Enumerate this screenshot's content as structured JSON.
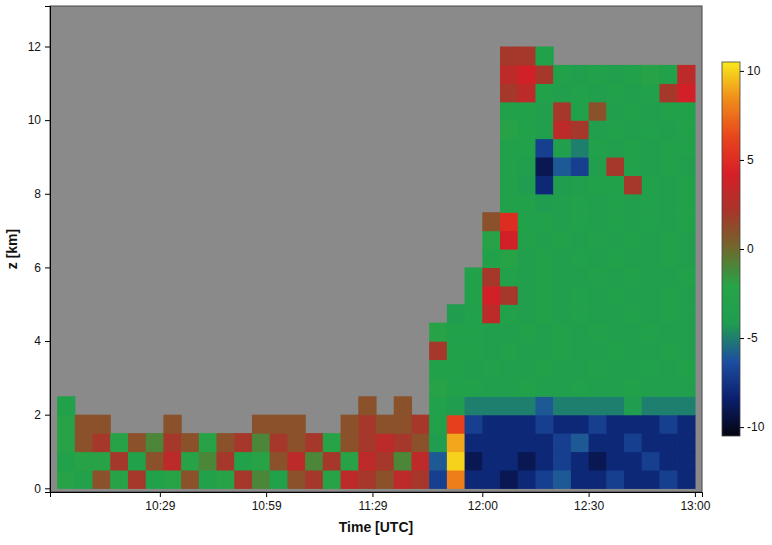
{
  "chart_data": {
    "type": "heatmap",
    "xlabel": "Time [UTC]",
    "ylabel": "z [km]",
    "xlim": [
      598,
      782
    ],
    "xticks": [
      {
        "value": 629,
        "label": "10:29"
      },
      {
        "value": 659,
        "label": "10:59"
      },
      {
        "value": 689,
        "label": "11:29"
      },
      {
        "value": 720,
        "label": "12:00"
      },
      {
        "value": 750,
        "label": "12:30"
      },
      {
        "value": 780,
        "label": "13:00"
      }
    ],
    "ylim": [
      -0.1,
      13.1
    ],
    "yticks": [
      0,
      2,
      4,
      6,
      8,
      10,
      12
    ],
    "x_bins": [
      600,
      605,
      610,
      615,
      620,
      625,
      630,
      635,
      640,
      645,
      650,
      655,
      660,
      665,
      670,
      675,
      680,
      685,
      690,
      695,
      700,
      705,
      710,
      715,
      720,
      725,
      730,
      735,
      740,
      745,
      750,
      755,
      760,
      765,
      770,
      775,
      780
    ],
    "y_bins": [
      0,
      0.5,
      1,
      1.5,
      2,
      2.5,
      3,
      3.5,
      4,
      4.5,
      5,
      5.5,
      6,
      6.5,
      7,
      7.5,
      8,
      8.5,
      9,
      9.5,
      10,
      10.5,
      11,
      11.5,
      12
    ],
    "values": [
      [
        -2,
        -3,
        1,
        -2,
        2,
        -3,
        -2,
        1,
        -3,
        -2,
        2,
        -1,
        -3,
        1,
        2,
        -2,
        3,
        2,
        1,
        3,
        2,
        -7,
        8,
        -8,
        -8,
        -9,
        -8,
        -7,
        -6,
        -8,
        -8,
        -7,
        -8,
        -8,
        -7,
        -8
      ],
      [
        -3,
        -2,
        -2,
        2,
        -3,
        1,
        3,
        -2,
        -1,
        2,
        -3,
        -2,
        1,
        3,
        -1,
        2,
        -2,
        3,
        2,
        -1,
        3,
        -6,
        10,
        -9,
        -8,
        -8,
        -9,
        -8,
        -7,
        -8,
        -9,
        -8,
        -8,
        -7,
        -8,
        -8
      ],
      [
        -2,
        1,
        2,
        -2,
        1,
        -1,
        2,
        1,
        -2,
        1,
        2,
        -1,
        2,
        1,
        2,
        -2,
        1,
        2,
        3,
        2,
        1,
        -4,
        9,
        -8,
        -8,
        -8,
        -8,
        -8,
        -7,
        -6,
        -8,
        -8,
        -7,
        -8,
        -8,
        -8
      ],
      [
        -2,
        1,
        1,
        null,
        null,
        null,
        1,
        null,
        null,
        null,
        null,
        1,
        1,
        1,
        null,
        null,
        1,
        2,
        1,
        1,
        2,
        -3,
        6,
        -7,
        -8,
        -8,
        -8,
        -7,
        -8,
        -8,
        -7,
        -8,
        -8,
        -8,
        -7,
        -8
      ],
      [
        -3,
        null,
        null,
        null,
        null,
        null,
        null,
        null,
        null,
        null,
        null,
        null,
        null,
        null,
        null,
        null,
        null,
        1,
        null,
        1,
        null,
        -3,
        -4,
        -5,
        -5,
        -5,
        -5,
        -6,
        -5,
        -5,
        -5,
        -5,
        -4,
        -5,
        -5,
        -5
      ],
      [
        null,
        null,
        null,
        null,
        null,
        null,
        null,
        null,
        null,
        null,
        null,
        null,
        null,
        null,
        null,
        null,
        null,
        null,
        null,
        null,
        null,
        -2,
        -3,
        -3,
        -3.5,
        -3.5,
        -3,
        -3.5,
        -3.5,
        -3,
        -3.5,
        -3.5,
        -3,
        -3.5,
        -3.5,
        -3.5
      ],
      [
        null,
        null,
        null,
        null,
        null,
        null,
        null,
        null,
        null,
        null,
        null,
        null,
        null,
        null,
        null,
        null,
        null,
        null,
        null,
        null,
        null,
        -3,
        -3,
        -3.5,
        -3,
        -3.5,
        -3.5,
        -3,
        -3.5,
        -3.5,
        -3,
        -3.5,
        -3.5,
        -3,
        -3.5,
        -3
      ],
      [
        null,
        null,
        null,
        null,
        null,
        null,
        null,
        null,
        null,
        null,
        null,
        null,
        null,
        null,
        null,
        null,
        null,
        null,
        null,
        null,
        null,
        2,
        -3,
        -3,
        -3.5,
        -3,
        -3.5,
        -3.5,
        -3,
        -3.5,
        -3.5,
        -3,
        -3.5,
        -3.5,
        -3,
        -3.5
      ],
      [
        null,
        null,
        null,
        null,
        null,
        null,
        null,
        null,
        null,
        null,
        null,
        null,
        null,
        null,
        null,
        null,
        null,
        null,
        null,
        null,
        null,
        -2,
        -3,
        -3,
        -3.5,
        -3.5,
        -3,
        -3.5,
        -3,
        -3.5,
        -3,
        -3.5,
        -3.5,
        -3,
        -3.5,
        -3.5
      ],
      [
        null,
        null,
        null,
        null,
        null,
        null,
        null,
        null,
        null,
        null,
        null,
        null,
        null,
        null,
        null,
        null,
        null,
        null,
        null,
        null,
        null,
        null,
        -4,
        -3,
        3,
        -3,
        -3.5,
        -3,
        -3.5,
        -3,
        -3.5,
        -3.5,
        -3,
        -3.5,
        -3,
        -3.5
      ],
      [
        null,
        null,
        null,
        null,
        null,
        null,
        null,
        null,
        null,
        null,
        null,
        null,
        null,
        null,
        null,
        null,
        null,
        null,
        null,
        null,
        null,
        null,
        null,
        -3,
        4,
        2,
        -3.5,
        -3,
        -3.5,
        -3,
        -3.5,
        -3,
        -3.5,
        -3.5,
        -3,
        -3.5
      ],
      [
        null,
        null,
        null,
        null,
        null,
        null,
        null,
        null,
        null,
        null,
        null,
        null,
        null,
        null,
        null,
        null,
        null,
        null,
        null,
        null,
        null,
        null,
        null,
        -3,
        2,
        -3,
        -3.5,
        -3,
        -3.5,
        -3.5,
        -3,
        -3.5,
        -3,
        -3.5,
        -3.5,
        -3
      ],
      [
        null,
        null,
        null,
        null,
        null,
        null,
        null,
        null,
        null,
        null,
        null,
        null,
        null,
        null,
        null,
        null,
        null,
        null,
        null,
        null,
        null,
        null,
        null,
        null,
        -3,
        -2,
        -3.5,
        -3,
        -3.5,
        -3,
        -3.5,
        -3,
        -3.5,
        -3.5,
        -3,
        -3.5
      ],
      [
        null,
        null,
        null,
        null,
        null,
        null,
        null,
        null,
        null,
        null,
        null,
        null,
        null,
        null,
        null,
        null,
        null,
        null,
        null,
        null,
        null,
        null,
        null,
        null,
        -2,
        4,
        -3,
        -3.5,
        -3,
        -3.5,
        -3,
        -3.5,
        -3,
        -3.5,
        -3,
        -3.5
      ],
      [
        null,
        null,
        null,
        null,
        null,
        null,
        null,
        null,
        null,
        null,
        null,
        null,
        null,
        null,
        null,
        null,
        null,
        null,
        null,
        null,
        null,
        null,
        null,
        null,
        1,
        5,
        -3,
        -3,
        -3.5,
        -3,
        -3.5,
        -3,
        -3.5,
        -3,
        -3.5,
        -3
      ],
      [
        null,
        null,
        null,
        null,
        null,
        null,
        null,
        null,
        null,
        null,
        null,
        null,
        null,
        null,
        null,
        null,
        null,
        null,
        null,
        null,
        null,
        null,
        null,
        null,
        null,
        -3,
        -3,
        -4,
        -3.5,
        -3,
        -3.5,
        -3,
        -3.5,
        -3,
        -3.5,
        -3
      ],
      [
        null,
        null,
        null,
        null,
        null,
        null,
        null,
        null,
        null,
        null,
        null,
        null,
        null,
        null,
        null,
        null,
        null,
        null,
        null,
        null,
        null,
        null,
        null,
        null,
        null,
        -3,
        -4,
        -8,
        -4,
        -3.5,
        -3,
        -3,
        2,
        -3,
        -3.5,
        -3
      ],
      [
        null,
        null,
        null,
        null,
        null,
        null,
        null,
        null,
        null,
        null,
        null,
        null,
        null,
        null,
        null,
        null,
        null,
        null,
        null,
        null,
        null,
        null,
        null,
        null,
        null,
        -3,
        -3.5,
        -9,
        -6,
        -7,
        -3.5,
        2,
        -3,
        -3.5,
        -3,
        -3.5
      ],
      [
        null,
        null,
        null,
        null,
        null,
        null,
        null,
        null,
        null,
        null,
        null,
        null,
        null,
        null,
        null,
        null,
        null,
        null,
        null,
        null,
        null,
        null,
        null,
        null,
        null,
        -3,
        -3,
        -7,
        -3.5,
        -5,
        -3,
        -3.5,
        -3,
        -3.5,
        -3,
        -3
      ],
      [
        null,
        null,
        null,
        null,
        null,
        null,
        null,
        null,
        null,
        null,
        null,
        null,
        null,
        null,
        null,
        null,
        null,
        null,
        null,
        null,
        null,
        null,
        null,
        null,
        null,
        -2,
        -3,
        -3.5,
        3,
        2,
        -3.5,
        -3,
        -3.5,
        -3,
        -3.5,
        -3
      ],
      [
        null,
        null,
        null,
        null,
        null,
        null,
        null,
        null,
        null,
        null,
        null,
        null,
        null,
        null,
        null,
        null,
        null,
        null,
        null,
        null,
        null,
        null,
        null,
        null,
        null,
        -3,
        -3,
        -3.5,
        2,
        -3,
        1,
        -3.5,
        -3,
        -3.5,
        -3,
        -3
      ],
      [
        null,
        null,
        null,
        null,
        null,
        null,
        null,
        null,
        null,
        null,
        null,
        null,
        null,
        null,
        null,
        null,
        null,
        null,
        null,
        null,
        null,
        null,
        null,
        null,
        null,
        2,
        3,
        -3,
        -3.5,
        -3,
        -3.5,
        -3,
        -3.5,
        -3,
        2,
        4
      ],
      [
        null,
        null,
        null,
        null,
        null,
        null,
        null,
        null,
        null,
        null,
        null,
        null,
        null,
        null,
        null,
        null,
        null,
        null,
        null,
        null,
        null,
        null,
        null,
        null,
        null,
        3,
        4,
        2,
        -3,
        -3.5,
        -3,
        -3.5,
        -3,
        -2,
        -3,
        3
      ],
      [
        null,
        null,
        null,
        null,
        null,
        null,
        null,
        null,
        null,
        null,
        null,
        null,
        null,
        null,
        null,
        null,
        null,
        null,
        null,
        null,
        null,
        null,
        null,
        null,
        null,
        2,
        2,
        -3,
        null,
        null,
        null,
        null,
        null,
        null,
        null,
        null
      ]
    ],
    "colorbar": {
      "range": [
        -10.5,
        10.5
      ],
      "ticks": [
        -10,
        -5,
        0,
        5,
        10
      ]
    }
  }
}
